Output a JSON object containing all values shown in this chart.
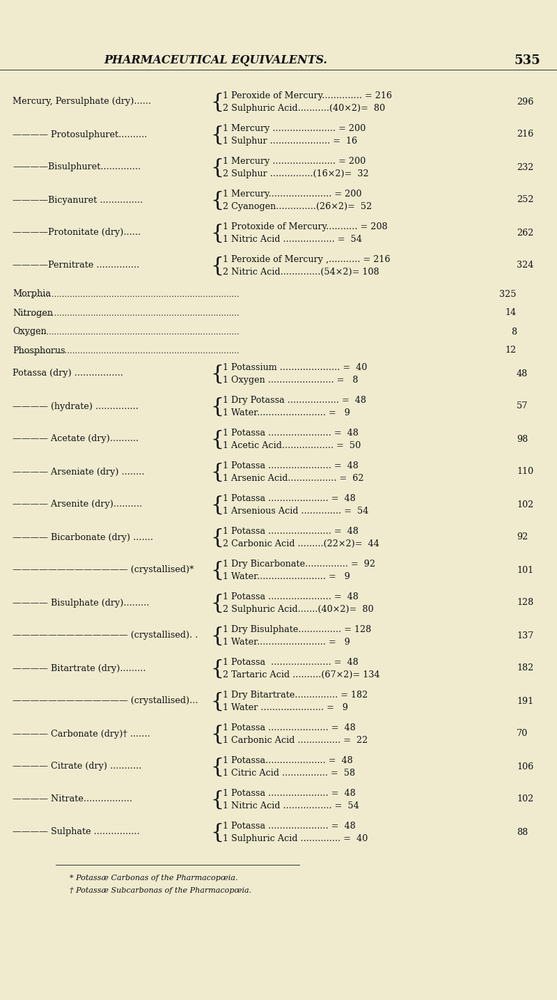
{
  "title": "PHARMACEUTICAL EQUIVALENTS.",
  "page_num": "535",
  "bg_color": "#f0ebcf",
  "text_color": "#111111",
  "title_fontsize": 11.5,
  "body_fontsize": 9.2,
  "rows": [
    {
      "left_label": "Mercury, Persulphate (dry)......",
      "indent": 0,
      "line1": "1 Peroxide of Mercury.............. = 216",
      "line2": "2 Sulphuric Acid...........(40×2)=  80",
      "right_val": "296",
      "type": "double"
    },
    {
      "left_label": "———— Protosulphuret..........",
      "indent": 1,
      "line1": "1 Mercury ...................... = 200",
      "line2": "1 Sulphur ..................... =  16",
      "right_val": "216",
      "type": "double"
    },
    {
      "left_label": "————Bisulphuret..............",
      "indent": 1,
      "line1": "1 Mercury ...................... = 200",
      "line2": "2 Sulphur ...............(16×2)=  32",
      "right_val": "232",
      "type": "double"
    },
    {
      "left_label": "————Bicyanuret ...............",
      "indent": 1,
      "line1": "1 Mercury...................... = 200",
      "line2": "2 Cyanogen..............(26×2)=  52",
      "right_val": "252",
      "type": "double"
    },
    {
      "left_label": "————Protonitate (dry)......",
      "indent": 1,
      "line1": "1 Protoxide of Mercury........... = 208",
      "line2": "1 Nitric Acid .................. =  54",
      "right_val": "262",
      "type": "double"
    },
    {
      "left_label": "————Pernitrate ...............",
      "indent": 1,
      "line1": "1 Peroxide of Mercury ,........... = 216",
      "line2": "2 Nitric Acid..............(54×2)= 108",
      "right_val": "324",
      "type": "double"
    },
    {
      "left_label": "Morphia",
      "indent": 0,
      "line1": "",
      "line2": "",
      "right_val": "325",
      "type": "single"
    },
    {
      "left_label": "Nitrogen",
      "indent": 0,
      "line1": "",
      "line2": "",
      "right_val": "14",
      "type": "single"
    },
    {
      "left_label": "Oxygen",
      "indent": 0,
      "line1": "",
      "line2": "",
      "right_val": "8",
      "type": "single"
    },
    {
      "left_label": "Phosphorus",
      "indent": 0,
      "line1": "",
      "line2": "",
      "right_val": "12",
      "type": "single"
    },
    {
      "left_label": "Potassa (dry) .................",
      "indent": 0,
      "line1": "1 Potassium ..................... =  40",
      "line2": "1 Oxygen ....................... =   8",
      "right_val": "48",
      "type": "double"
    },
    {
      "left_label": "———— (hydrate) ...............",
      "indent": 1,
      "line1": "1 Dry Potassa .................. =  48",
      "line2": "1 Water........................ =   9",
      "right_val": "57",
      "type": "double"
    },
    {
      "left_label": "———— Acetate (dry)..........",
      "indent": 1,
      "line1": "1 Potassa ...................... =  48",
      "line2": "1 Acetic Acid.................. =  50",
      "right_val": "98",
      "type": "double"
    },
    {
      "left_label": "———— Arseniate (dry) ........",
      "indent": 1,
      "line1": "1 Potassa ...................... =  48",
      "line2": "1 Arsenic Acid................. =  62",
      "right_val": "110",
      "type": "double"
    },
    {
      "left_label": "———— Arsenite (dry)..........",
      "indent": 1,
      "line1": "1 Potassa ..................... =  48",
      "line2": "1 Arsenious Acid .............. =  54",
      "right_val": "102",
      "type": "double"
    },
    {
      "left_label": "———— Bicarbonate (dry) .......",
      "indent": 1,
      "line1": "1 Potassa ...................... =  48",
      "line2": "2 Carbonic Acid .........(22×2)=  44",
      "right_val": "92",
      "type": "double"
    },
    {
      "left_label": "————————————— (crystallised)*",
      "indent": 2,
      "line1": "1 Dry Bicarbonate............... =  92",
      "line2": "1 Water........................ =   9",
      "right_val": "101",
      "type": "double"
    },
    {
      "left_label": "———— Bisulphate (dry).........",
      "indent": 1,
      "line1": "1 Potassa ...................... =  48",
      "line2": "2 Sulphuric Acid.......(40×2)=  80",
      "right_val": "128",
      "type": "double"
    },
    {
      "left_label": "————————————— (crystallised). .",
      "indent": 2,
      "line1": "1 Dry Bisulphate............... = 128",
      "line2": "1 Water........................ =   9",
      "right_val": "137",
      "type": "double"
    },
    {
      "left_label": "———— Bitartrate (dry).........",
      "indent": 1,
      "line1": "1 Potassa  ..................... =  48",
      "line2": "2 Tartaric Acid ..........(67×2)= 134",
      "right_val": "182",
      "type": "double"
    },
    {
      "left_label": "————————————— (crystallised)...",
      "indent": 2,
      "line1": "1 Dry Bitartrate............... = 182",
      "line2": "1 Water ...................... =   9",
      "right_val": "191",
      "type": "double"
    },
    {
      "left_label": "———— Carbonate (dry)† .......",
      "indent": 1,
      "line1": "1 Potassa ..................... =  48",
      "line2": "1 Carbonic Acid ............... =  22",
      "right_val": "70",
      "type": "double"
    },
    {
      "left_label": "———— Citrate (dry) ...........",
      "indent": 1,
      "line1": "1 Potassa..................... =  48",
      "line2": "1 Citric Acid ................ =  58",
      "right_val": "106",
      "type": "double"
    },
    {
      "left_label": "———— Nitrate.................",
      "indent": 1,
      "line1": "1 Potassa ..................... =  48",
      "line2": "1 Nitric Acid ................. =  54",
      "right_val": "102",
      "type": "double"
    },
    {
      "left_label": "———— Sulphate ................",
      "indent": 1,
      "line1": "1 Potassa ..................... =  48",
      "line2": "1 Sulphuric Acid .............. =  40",
      "right_val": "88",
      "type": "double"
    }
  ],
  "footnotes": [
    "* Potassæ Carbonas of the Pharmacopœia.",
    "† Potassæ Subcarbonas of the Pharmacopœia."
  ]
}
